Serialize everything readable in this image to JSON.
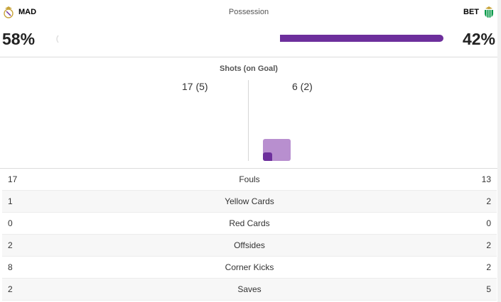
{
  "home": {
    "abbr": "MAD",
    "possession": "58%",
    "shots": "17 (5)",
    "crest_color": "#c8a43b",
    "accent": "#6d2f9c"
  },
  "away": {
    "abbr": "BET",
    "possession": "42%",
    "shots": "6 (2)",
    "crest_color": "#0a9a4a",
    "accent": "#6d2f9c"
  },
  "possession": {
    "title": "Possession",
    "home_fraction": 0.58,
    "away_fraction": 0.42
  },
  "shots": {
    "title": "Shots (on Goal)",
    "home_total": 17,
    "home_on_goal": 5,
    "away_total": 6,
    "away_on_goal": 2
  },
  "stats": [
    {
      "label": "Fouls",
      "home": "17",
      "away": "13"
    },
    {
      "label": "Yellow Cards",
      "home": "1",
      "away": "2"
    },
    {
      "label": "Red Cards",
      "home": "0",
      "away": "0"
    },
    {
      "label": "Offsides",
      "home": "2",
      "away": "2"
    },
    {
      "label": "Corner Kicks",
      "home": "8",
      "away": "2"
    },
    {
      "label": "Saves",
      "home": "2",
      "away": "5"
    }
  ]
}
